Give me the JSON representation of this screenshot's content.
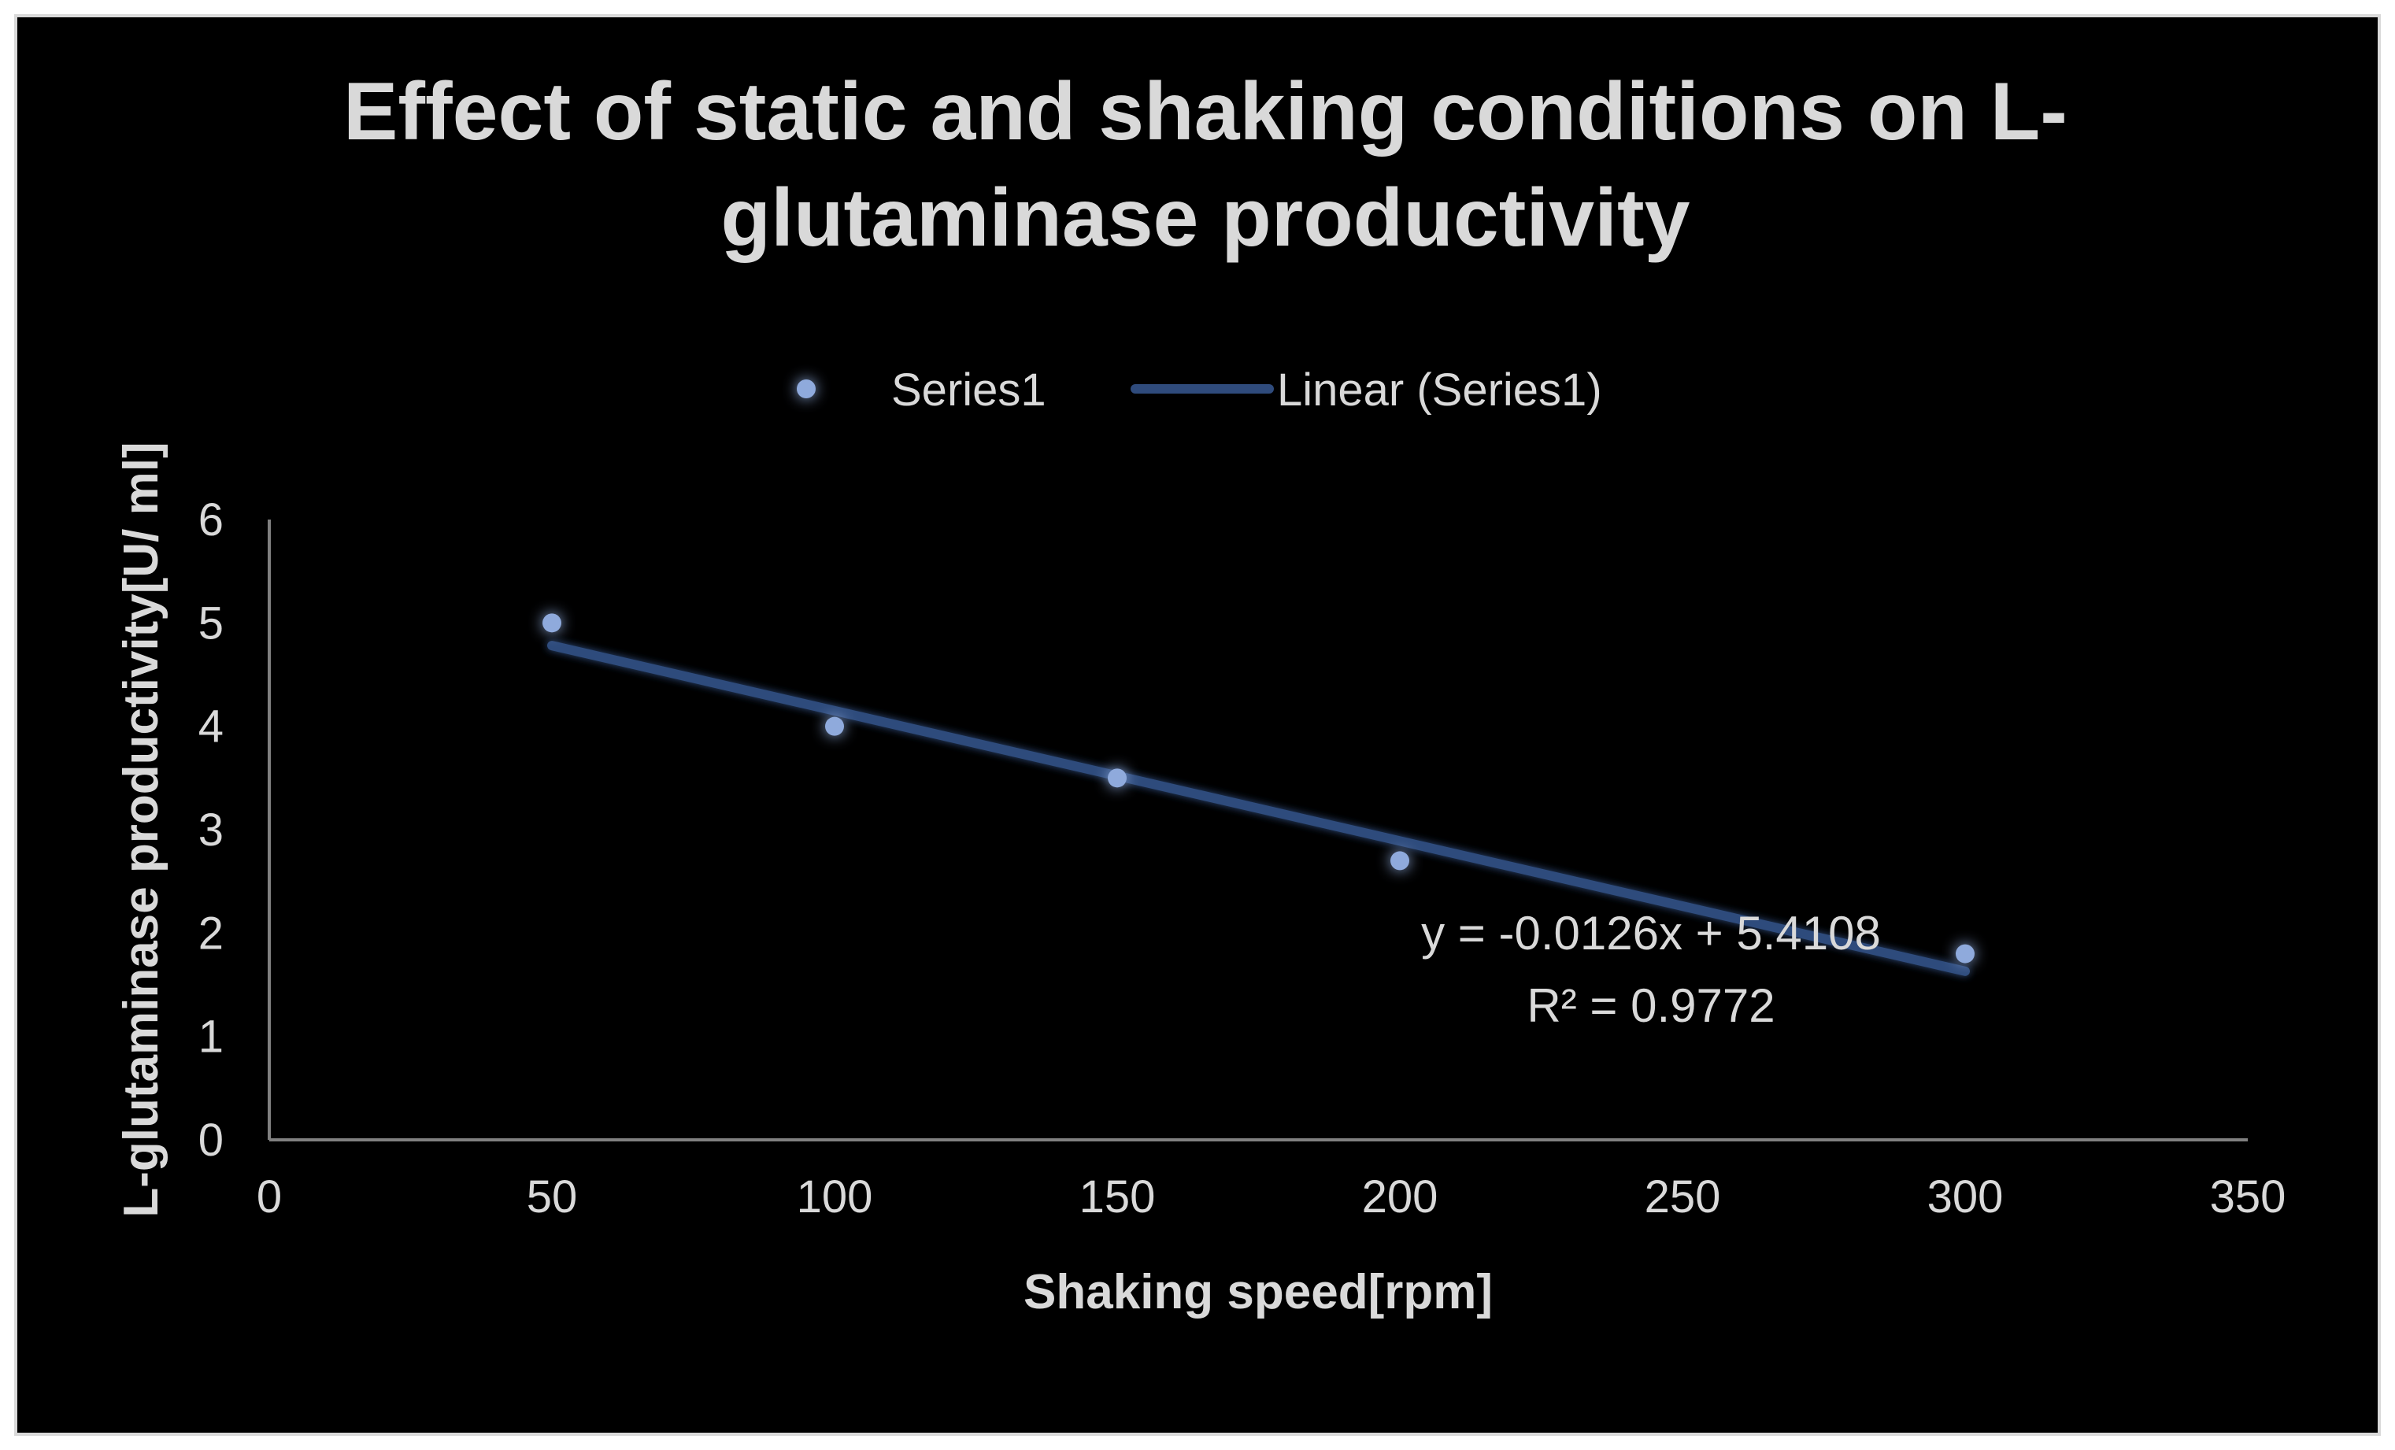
{
  "chart_data": {
    "type": "scatter",
    "title_lines": [
      "Effect of static and shaking conditions on L-",
      "glutaminase productivity"
    ],
    "xlabel": "Shaking speed[rpm]",
    "ylabel": "L-glutaminase productivity[U/ ml]",
    "xlim": [
      0,
      350
    ],
    "ylim": [
      0,
      6
    ],
    "x_ticks": [
      "0",
      "50",
      "100",
      "150",
      "200",
      "250",
      "300",
      "350"
    ],
    "y_ticks": [
      "0",
      "1",
      "2",
      "3",
      "4",
      "5",
      "6"
    ],
    "series": [
      {
        "name": "Series1",
        "x": [
          50,
          100,
          150,
          200,
          300
        ],
        "y": [
          5.0,
          4.0,
          3.5,
          2.7,
          1.8
        ]
      }
    ],
    "trendline": {
      "name": "Linear (Series1)",
      "slope": -0.0126,
      "intercept": 5.4108,
      "x_range": [
        50,
        300
      ],
      "equation_text": "y = -0.0126x + 5.4108",
      "r2_text": "R² = 0.9772"
    },
    "legend_position": "top",
    "colors": {
      "background": "#000000",
      "text": "#d9d9d9",
      "axis": "#808080",
      "marker": "#8faadc",
      "marker_glow": "#2f5597",
      "trendline": "#2f4b7c"
    }
  }
}
